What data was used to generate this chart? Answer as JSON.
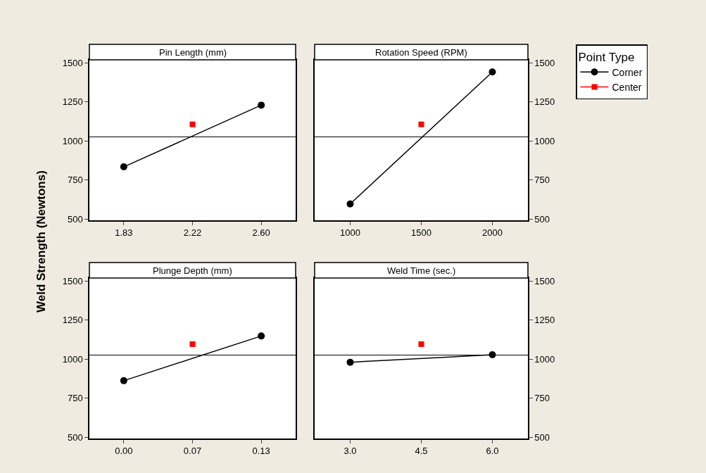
{
  "chart_data": [
    {
      "type": "line",
      "title": "Pin Length (mm)",
      "ylabel": "Weld Strength (Newtons)",
      "categories": [
        "1.83",
        "2.22",
        "2.60"
      ],
      "ylim": [
        491,
        1518
      ],
      "yticks": [
        500,
        750,
        1000,
        1250,
        1500
      ],
      "line_style": "solid",
      "series": [
        {
          "color": "#000000",
          "marker": "circle",
          "values": [
            833,
            null,
            1228
          ]
        },
        {
          "color": "#ff0000",
          "marker": "square",
          "values": [
            null,
            1105,
            null
          ]
        }
      ],
      "ref_lines": [
        {
          "axis": "y",
          "value": 1025,
          "color": "#000000"
        }
      ]
    },
    {
      "type": "line",
      "title": "Rotation Speed (RPM)",
      "categories": [
        "1000",
        "1500",
        "2000"
      ],
      "ylim": [
        491,
        1518
      ],
      "yticks": [
        500,
        750,
        1000,
        1250,
        1500
      ],
      "line_style": "solid",
      "legend": "top right",
      "legend_title": "Point Type",
      "series": [
        {
          "name": "Corner",
          "color": "#000000",
          "marker": "circle",
          "values": [
            596,
            null,
            1440
          ]
        },
        {
          "name": "Center",
          "color": "#ff0000",
          "marker": "square",
          "values": [
            null,
            1105,
            null
          ]
        }
      ],
      "ref_lines": [
        {
          "axis": "y",
          "value": 1025,
          "color": "#000000"
        }
      ]
    },
    {
      "type": "line",
      "title": "Plunge Depth (mm)",
      "categories": [
        "0.00",
        "0.07",
        "0.13"
      ],
      "ylim": [
        491,
        1518
      ],
      "yticks": [
        500,
        750,
        1000,
        1250,
        1500
      ],
      "line_style": "solid",
      "series": [
        {
          "color": "#000000",
          "marker": "circle",
          "values": [
            861,
            null,
            1147
          ]
        },
        {
          "color": "#ff0000",
          "marker": "square",
          "values": [
            null,
            1095,
            null
          ]
        }
      ],
      "ref_lines": [
        {
          "axis": "y",
          "value": 1025,
          "color": "#000000"
        }
      ]
    },
    {
      "type": "line",
      "title": "Weld Time (sec.)",
      "categories": [
        "3.0",
        "4.5",
        "6.0"
      ],
      "ylim": [
        491,
        1518
      ],
      "yticks": [
        500,
        750,
        1000,
        1250,
        1500
      ],
      "line_style": "solid",
      "series": [
        {
          "color": "#000000",
          "marker": "circle",
          "values": [
            979,
            null,
            1027
          ]
        },
        {
          "color": "#ff0000",
          "marker": "square",
          "values": [
            null,
            1095,
            null
          ]
        }
      ],
      "ref_lines": [
        {
          "axis": "y",
          "value": 1025,
          "color": "#000000"
        }
      ]
    }
  ]
}
